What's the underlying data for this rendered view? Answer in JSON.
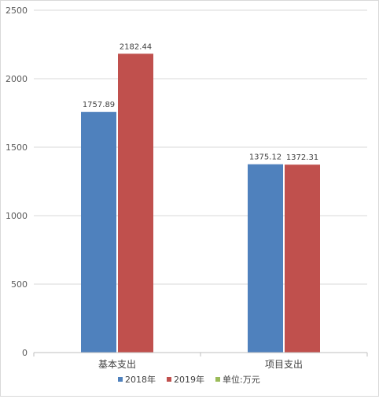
{
  "chart_data": {
    "type": "bar",
    "categories": [
      "基本支出",
      "项目支出"
    ],
    "series": [
      {
        "name": "2018年",
        "values": [
          1757.89,
          1375.12
        ],
        "color": "#4f81bd"
      },
      {
        "name": "2019年",
        "values": [
          2182.44,
          1372.31
        ],
        "color": "#c0504d"
      },
      {
        "name": "单位:万元",
        "values": [
          0,
          0
        ],
        "color": "#9bbb59"
      }
    ],
    "data_labels": [
      [
        "1757.89",
        "1375.12"
      ],
      [
        "2182.44",
        "1372.31"
      ],
      [
        "",
        ""
      ]
    ],
    "yticks": [
      "0",
      "500",
      "1000",
      "1500",
      "2000",
      "2500"
    ],
    "ylim": [
      0,
      2500
    ],
    "grid": true,
    "legend_position": "bottom"
  }
}
